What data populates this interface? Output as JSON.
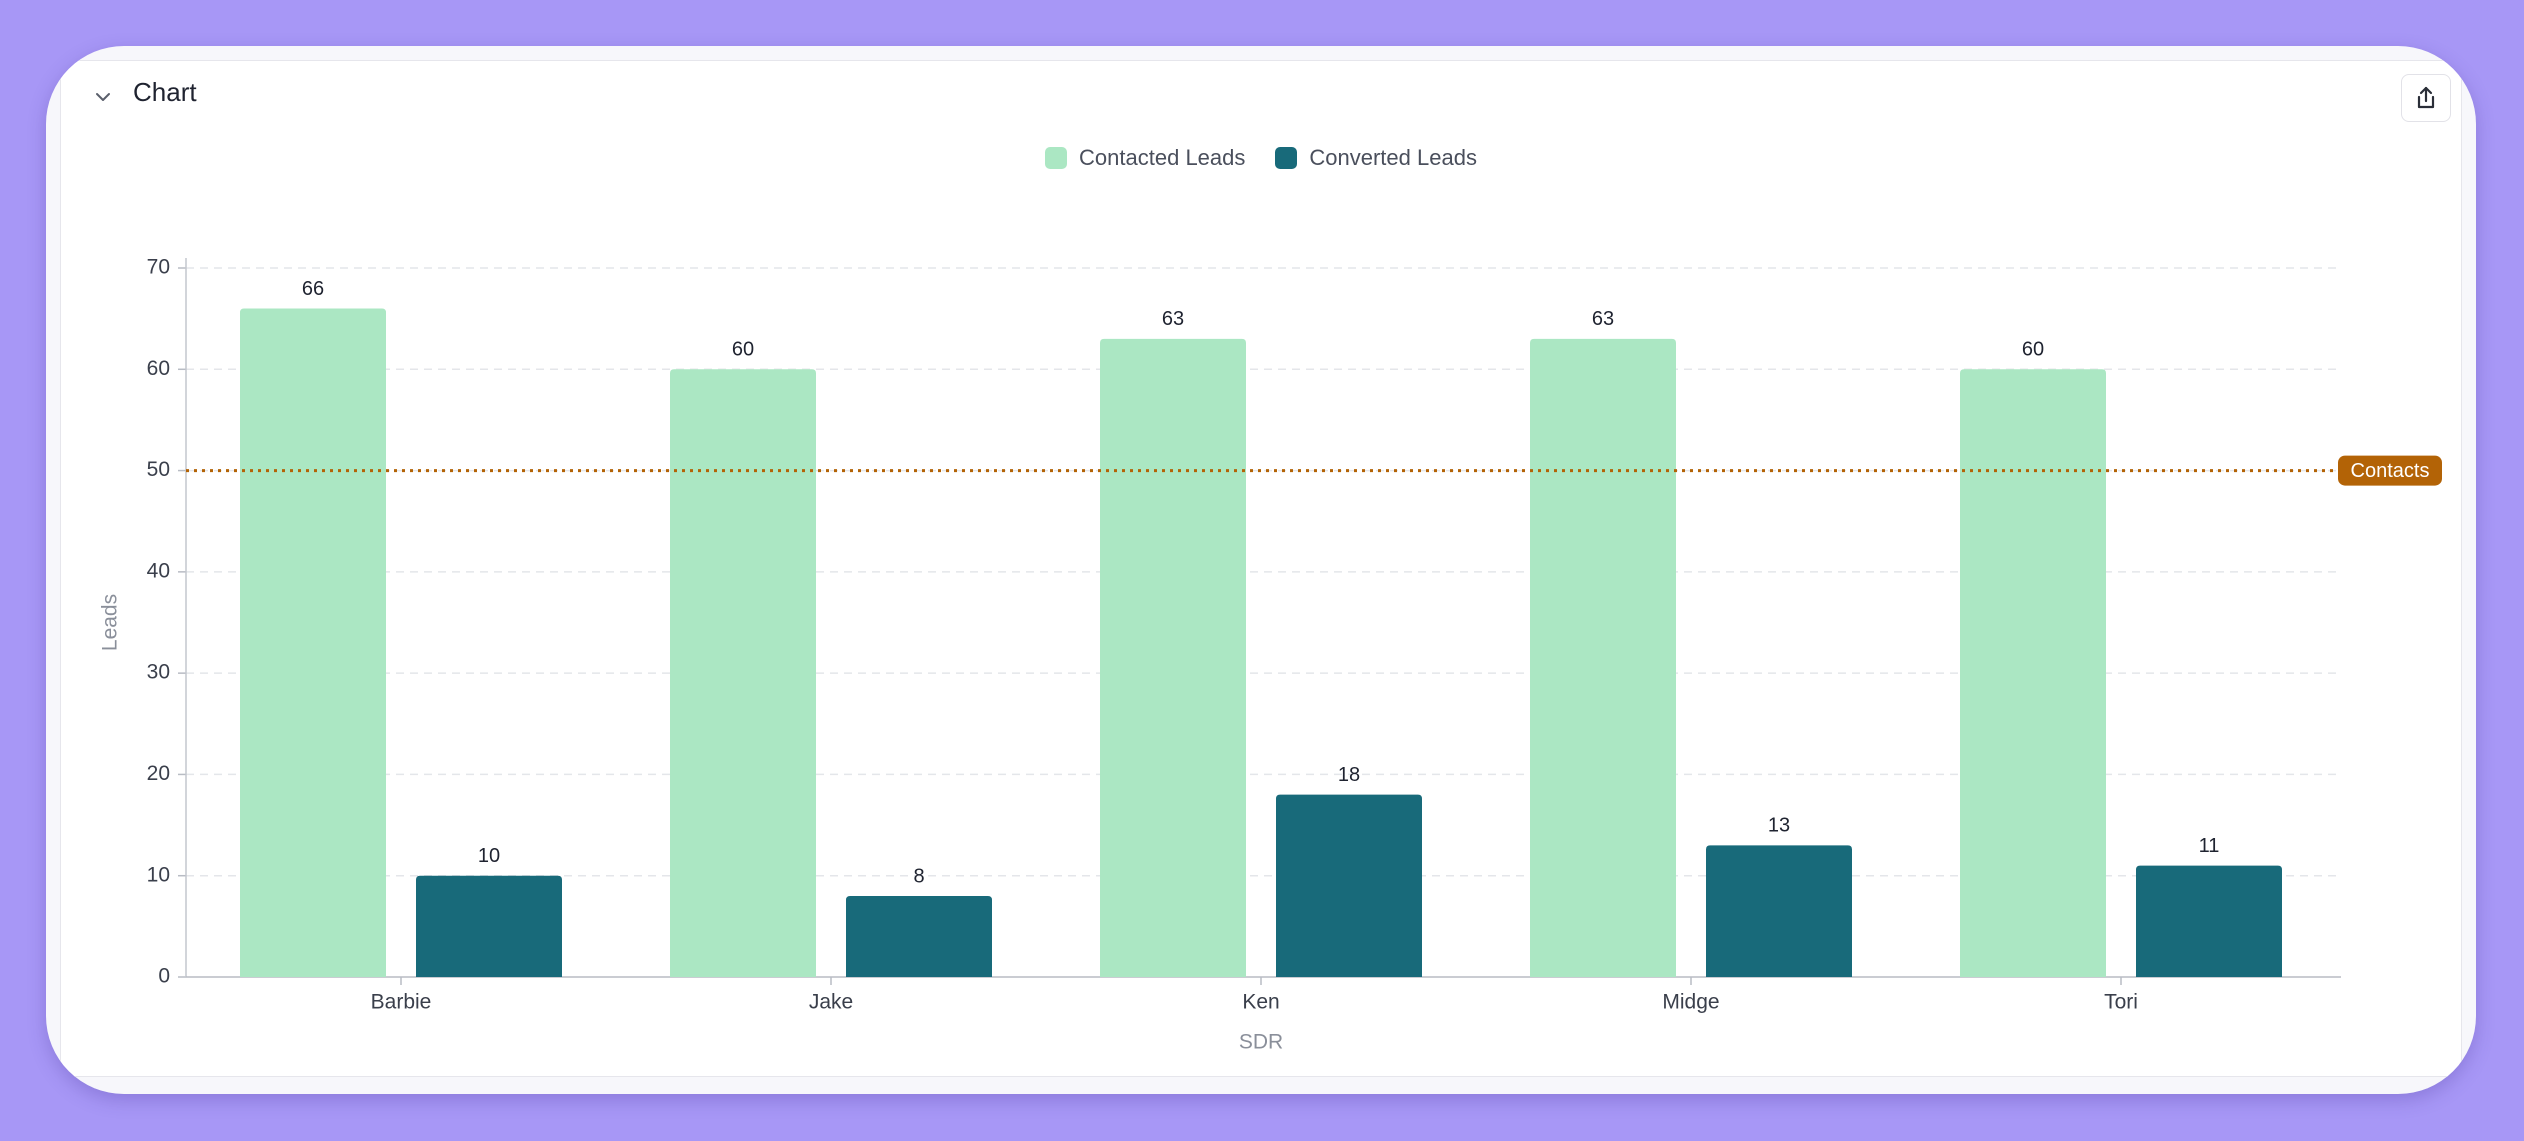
{
  "header": {
    "title": "Chart"
  },
  "icons": {
    "collapse": "chevron-down-icon",
    "share": "share-icon"
  },
  "colors": {
    "background": "#a797f6",
    "contacted": "#abe7c3",
    "converted": "#186a7a",
    "reference": "#b36306",
    "grid": "#e4e6ea"
  },
  "chart_data": {
    "type": "bar",
    "categories": [
      "Barbie",
      "Jake",
      "Ken",
      "Midge",
      "Tori"
    ],
    "series": [
      {
        "name": "Contacted Leads",
        "values": [
          66,
          60,
          63,
          63,
          60
        ],
        "color": "#abe7c3"
      },
      {
        "name": "Converted Leads",
        "values": [
          10,
          8,
          18,
          13,
          11
        ],
        "color": "#186a7a"
      }
    ],
    "xlabel": "SDR",
    "ylabel": "Leads",
    "ylim": [
      0,
      70
    ],
    "yticks": [
      0,
      10,
      20,
      30,
      40,
      50,
      60,
      70
    ],
    "grid": true,
    "legend_position": "top-center",
    "reference_line": {
      "value": 50,
      "label": "Contacts",
      "color": "#b36306",
      "style": "dotted"
    }
  }
}
